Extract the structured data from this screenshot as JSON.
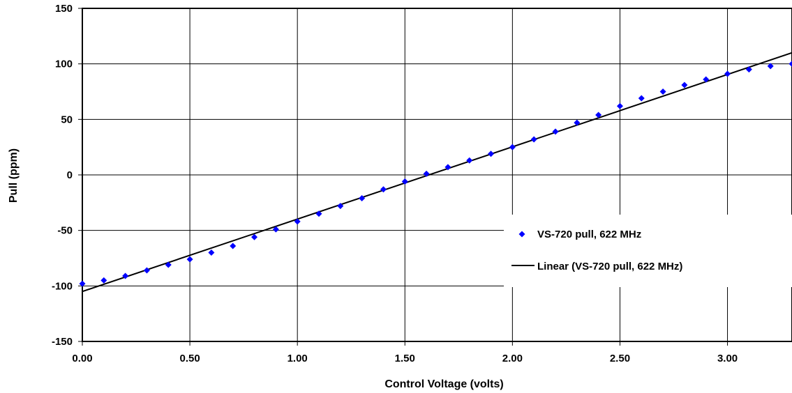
{
  "chart_data": {
    "type": "scatter",
    "xlabel": "Control Voltage (volts)",
    "ylabel": "Pull (ppm)",
    "xlim": [
      0,
      3.3
    ],
    "ylim": [
      -150,
      150
    ],
    "x_ticks": [
      "0.00",
      "0.50",
      "1.00",
      "1.50",
      "2.00",
      "2.50",
      "3.00"
    ],
    "y_ticks": [
      "150",
      "100",
      "50",
      "0",
      "-50",
      "-100",
      "-150"
    ],
    "x_tick_values": [
      0,
      0.5,
      1.0,
      1.5,
      2.0,
      2.5,
      3.0
    ],
    "y_tick_values": [
      150,
      100,
      50,
      0,
      -50,
      -100,
      -150
    ],
    "grid": true,
    "legend_position": "right-middle",
    "series": [
      {
        "name": "VS-720 pull, 622 MHz",
        "kind": "points",
        "color": "#0000ff",
        "marker": "diamond",
        "x": [
          0.0,
          0.1,
          0.2,
          0.3,
          0.4,
          0.5,
          0.6,
          0.7,
          0.8,
          0.9,
          1.0,
          1.1,
          1.2,
          1.3,
          1.4,
          1.5,
          1.6,
          1.7,
          1.8,
          1.9,
          2.0,
          2.1,
          2.2,
          2.3,
          2.4,
          2.5,
          2.6,
          2.7,
          2.8,
          2.9,
          3.0,
          3.1,
          3.2,
          3.3
        ],
        "y": [
          -98,
          -95,
          -91,
          -86,
          -81,
          -76,
          -70,
          -64,
          -56,
          -49,
          -42,
          -35,
          -28,
          -21,
          -13,
          -6,
          1,
          7,
          13,
          19,
          25,
          32,
          39,
          47,
          54,
          62,
          69,
          75,
          81,
          86,
          91,
          95,
          98,
          100
        ]
      },
      {
        "name": "Linear (VS-720 pull, 622 MHz)",
        "kind": "line",
        "color": "#000000",
        "x": [
          0.0,
          3.3
        ],
        "y": [
          -105,
          110
        ]
      }
    ]
  }
}
